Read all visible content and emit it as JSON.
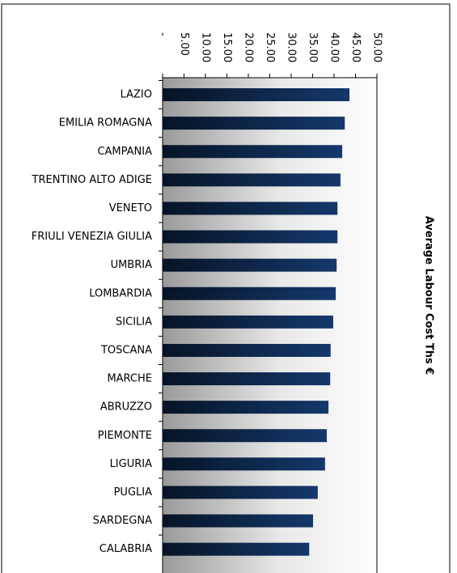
{
  "chart_data": {
    "type": "bar",
    "orientation": "horizontal",
    "x_label": "Average Labour Cost Ths €",
    "categories": [
      "LAZIO",
      "EMILIA ROMAGNA",
      "CAMPANIA",
      "TRENTINO ALTO ADIGE",
      "VENETO",
      "FRIULI VENEZIA GIULIA",
      "UMBRIA",
      "LOMBARDIA",
      "SICILIA",
      "TOSCANA",
      "MARCHE",
      "ABRUZZO",
      "PIEMONTE",
      "LIGURIA",
      "PUGLIA",
      "SARDEGNA",
      "CALABRIA"
    ],
    "values": [
      43.6,
      42.5,
      41.9,
      41.5,
      40.8,
      40.8,
      40.6,
      40.4,
      39.8,
      39.2,
      39.1,
      38.7,
      38.3,
      37.9,
      36.2,
      35.1,
      34.2
    ],
    "color": "#0d2a57",
    "xlim": [
      0,
      50
    ],
    "xticks": [
      {
        "value": 0,
        "label": "-"
      },
      {
        "value": 5,
        "label": "5.00"
      },
      {
        "value": 10,
        "label": "10.00"
      },
      {
        "value": 15,
        "label": "15.00"
      },
      {
        "value": 20,
        "label": "20.00"
      },
      {
        "value": 25,
        "label": "25.00"
      },
      {
        "value": 30,
        "label": "30.00"
      },
      {
        "value": 35,
        "label": "35.00"
      },
      {
        "value": 40,
        "label": "40.00"
      },
      {
        "value": 45,
        "label": "45.00"
      },
      {
        "value": 50,
        "label": "50.00"
      }
    ]
  }
}
